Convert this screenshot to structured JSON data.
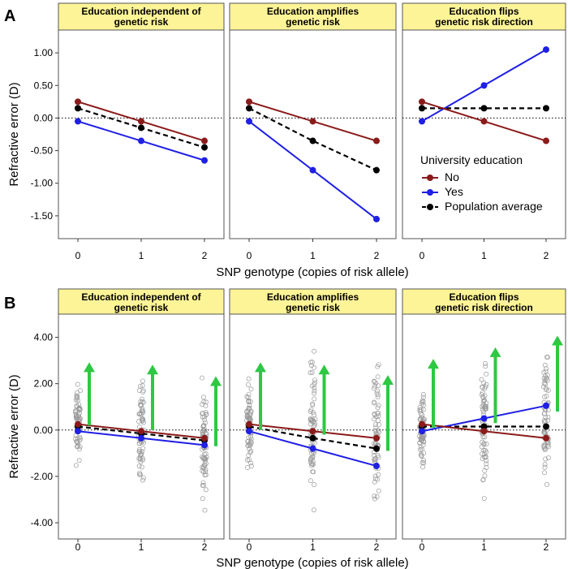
{
  "chart_data": [
    {
      "panel_label": "A",
      "type": "line",
      "ylabel": "Refractive error (D)",
      "xlabel": "SNP genotype (copies of risk allele)",
      "x": [
        0,
        1,
        2
      ],
      "x_tick_labels": [
        "0",
        "1",
        "2"
      ],
      "ylim": [
        -1.85,
        1.35
      ],
      "y_ticks": [
        1.0,
        0.5,
        0.0,
        -0.5,
        -1.0,
        -1.5
      ],
      "y_tick_labels": [
        "1.00",
        "0.50",
        "0.00",
        "-0.50",
        "-1.00",
        "-1.50"
      ],
      "reference_line_y": 0,
      "facets": [
        {
          "title_lines": [
            "Education independent of",
            "genetic risk"
          ],
          "series": [
            {
              "name": "No",
              "values": [
                0.25,
                -0.05,
                -0.35
              ]
            },
            {
              "name": "Yes",
              "values": [
                -0.05,
                -0.35,
                -0.65
              ]
            },
            {
              "name": "Population average",
              "values": [
                0.15,
                -0.15,
                -0.45
              ]
            }
          ]
        },
        {
          "title_lines": [
            "Education amplifies",
            "genetic risk"
          ],
          "series": [
            {
              "name": "No",
              "values": [
                0.25,
                -0.05,
                -0.35
              ]
            },
            {
              "name": "Yes",
              "values": [
                -0.05,
                -0.8,
                -1.55
              ]
            },
            {
              "name": "Population average",
              "values": [
                0.15,
                -0.35,
                -0.8
              ]
            }
          ]
        },
        {
          "title_lines": [
            "Education flips",
            "genetic risk direction"
          ],
          "series": [
            {
              "name": "No",
              "values": [
                0.25,
                -0.05,
                -0.35
              ]
            },
            {
              "name": "Yes",
              "values": [
                -0.05,
                0.5,
                1.05
              ]
            },
            {
              "name": "Population average",
              "values": [
                0.15,
                0.15,
                0.15
              ]
            }
          ]
        }
      ],
      "legend": {
        "title": "University education",
        "entries": [
          "No",
          "Yes",
          "Population average"
        ],
        "placement": "inside third facet, lower right"
      }
    },
    {
      "panel_label": "B",
      "type": "scatter",
      "ylabel": "Refractive error (D)",
      "xlabel": "SNP genotype (copies of risk allele)",
      "x": [
        0,
        1,
        2
      ],
      "x_tick_labels": [
        "0",
        "1",
        "2"
      ],
      "ylim": [
        -4.7,
        5.0
      ],
      "y_ticks": [
        4,
        2,
        0,
        -2,
        -4
      ],
      "y_tick_labels": [
        "4.00",
        "2.00",
        "0.00",
        "-2.00",
        "-4.00"
      ],
      "reference_line_y": 0,
      "facets": [
        {
          "title_lines": [
            "Education independent of",
            "genetic risk"
          ],
          "series": [
            {
              "name": "No",
              "values": [
                0.25,
                -0.05,
                -0.35
              ]
            },
            {
              "name": "Yes",
              "values": [
                -0.05,
                -0.35,
                -0.65
              ]
            },
            {
              "name": "Population average",
              "values": [
                0.15,
                -0.15,
                -0.45
              ]
            }
          ],
          "point_spread": [
            [
              -2.1,
              2.8
            ],
            [
              -3.2,
              3.2
            ],
            [
              -3.8,
              2.5
            ]
          ],
          "arrows": [
            {
              "x": 0,
              "from": 0.2,
              "to": 2.85
            },
            {
              "x": 1,
              "from": 0.0,
              "to": 2.75
            },
            {
              "x": 2,
              "from": -0.7,
              "to": 2.25
            }
          ]
        },
        {
          "title_lines": [
            "Education amplifies",
            "genetic risk"
          ],
          "series": [
            {
              "name": "No",
              "values": [
                0.25,
                -0.05,
                -0.35
              ]
            },
            {
              "name": "Yes",
              "values": [
                -0.05,
                -0.8,
                -1.55
              ]
            },
            {
              "name": "Population average",
              "values": [
                0.15,
                -0.35,
                -0.8
              ]
            }
          ],
          "point_spread": [
            [
              -2.1,
              2.5
            ],
            [
              -4.1,
              4.3
            ],
            [
              -4.2,
              4.1
            ]
          ],
          "arrows": [
            {
              "x": 0,
              "from": 0.0,
              "to": 2.85
            },
            {
              "x": 1,
              "from": -0.2,
              "to": 2.75
            },
            {
              "x": 2,
              "from": -0.9,
              "to": 2.3
            }
          ]
        },
        {
          "title_lines": [
            "Education flips",
            "genetic risk direction"
          ],
          "series": [
            {
              "name": "No",
              "values": [
                0.25,
                -0.05,
                -0.35
              ]
            },
            {
              "name": "Yes",
              "values": [
                -0.05,
                0.5,
                1.05
              ]
            },
            {
              "name": "Population average",
              "values": [
                0.15,
                0.15,
                0.15
              ]
            }
          ],
          "point_spread": [
            [
              -2.3,
              2.3
            ],
            [
              -3.7,
              4.2
            ],
            [
              -4.0,
              4.3
            ]
          ],
          "arrows": [
            {
              "x": 0,
              "from": 0.1,
              "to": 3.0
            },
            {
              "x": 1,
              "from": 0.3,
              "to": 3.5
            },
            {
              "x": 2,
              "from": 0.8,
              "to": 4.0
            }
          ]
        }
      ]
    }
  ],
  "colors": {
    "no": "#8b1a1a",
    "yes": "#1f1fe6",
    "average": "#000000",
    "arrow": "#2ec842",
    "strip_fill": "#fdf497",
    "open_points": "#9a9a9a"
  }
}
